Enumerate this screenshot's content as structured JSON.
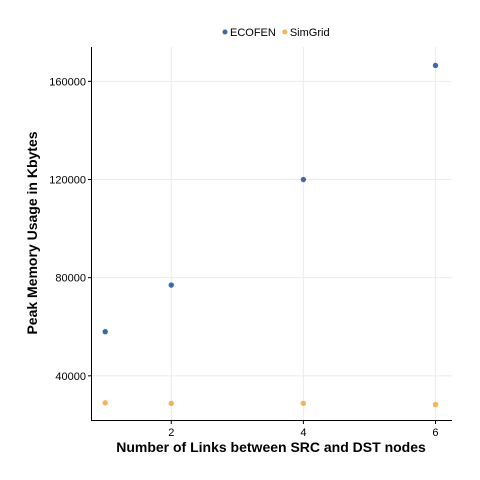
{
  "chart_data": {
    "type": "scatter",
    "title": "",
    "xlabel": "Number of Links between SRC and DST nodes",
    "ylabel": "Peak Memory Usage in Kbytes",
    "xlim": [
      0.8,
      6.25
    ],
    "ylim": [
      22000,
      174000
    ],
    "x_ticks": [
      2,
      4,
      6
    ],
    "x_tick_labels": [
      "2",
      "4",
      "6"
    ],
    "y_ticks": [
      40000,
      80000,
      120000,
      160000
    ],
    "y_tick_labels": [
      "40000",
      "80000",
      "120000",
      "160000"
    ],
    "grid": true,
    "legend_position": "top",
    "series": [
      {
        "name": "ECOFEN",
        "color": "#3a6aa8",
        "points": [
          {
            "x": 1,
            "y": 58000
          },
          {
            "x": 2,
            "y": 77000
          },
          {
            "x": 4,
            "y": 120000
          },
          {
            "x": 6,
            "y": 166500
          }
        ]
      },
      {
        "name": "SimGrid",
        "color": "#f5b25a",
        "points": [
          {
            "x": 1,
            "y": 29000
          },
          {
            "x": 2,
            "y": 28800
          },
          {
            "x": 4,
            "y": 28800
          },
          {
            "x": 6,
            "y": 28300
          }
        ]
      }
    ]
  }
}
